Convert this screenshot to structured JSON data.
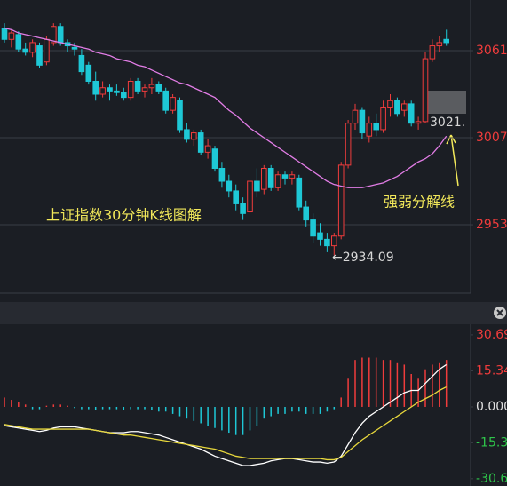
{
  "chart_data": [
    {
      "type": "candlestick",
      "open": [
        3075,
        3068,
        3071,
        3062,
        3060,
        3064,
        3054,
        3066,
        3076,
        3066,
        3063,
        3058,
        3052,
        3042,
        3034,
        3038,
        3036,
        3035,
        3032,
        3042,
        3036,
        3038,
        3040,
        3036,
        3024,
        3030,
        3012,
        3006,
        3010,
        2998,
        3000,
        2988,
        2980,
        2974,
        2966,
        2961,
        2980,
        2975,
        2988,
        2976,
        2984,
        2982,
        2982,
        2964,
        2956,
        2948,
        2944,
        2940,
        2946,
        2990,
        3016,
        3024,
        3008,
        3016,
        3012,
        3026,
        3030,
        3024,
        3028,
        3016,
        3017,
        3056,
        3064,
        3068
      ],
      "high": [
        3078,
        3074,
        3073,
        3066,
        3068,
        3066,
        3070,
        3078,
        3078,
        3068,
        3066,
        3062,
        3054,
        3048,
        3042,
        3040,
        3040,
        3038,
        3044,
        3044,
        3040,
        3044,
        3042,
        3038,
        3034,
        3032,
        3016,
        3012,
        3012,
        3006,
        3002,
        2992,
        2984,
        2978,
        2970,
        2982,
        2988,
        2990,
        2990,
        2986,
        2986,
        2986,
        2984,
        2968,
        2960,
        2954,
        2948,
        2948,
        2992,
        3018,
        3028,
        3026,
        3020,
        3022,
        3030,
        3034,
        3032,
        3030,
        3030,
        3020,
        3060,
        3068,
        3070,
        3074
      ],
      "low": [
        3066,
        3063,
        3060,
        3058,
        3057,
        3050,
        3052,
        3064,
        3064,
        3060,
        3058,
        3046,
        3040,
        3030,
        3032,
        3030,
        3033,
        3030,
        3030,
        3034,
        3032,
        3034,
        3034,
        3022,
        3022,
        3010,
        3004,
        3002,
        2996,
        2994,
        2986,
        2976,
        2970,
        2962,
        2956,
        2958,
        2970,
        2972,
        2974,
        2974,
        2978,
        2978,
        2962,
        2952,
        2942,
        2940,
        2936,
        2934.09,
        2944,
        2988,
        3012,
        3006,
        3004,
        3008,
        3010,
        3020,
        3020,
        3020,
        3014,
        3012,
        3016,
        3054,
        3060,
        3064
      ],
      "close": [
        3068,
        3072,
        3062,
        3060,
        3066,
        3052,
        3068,
        3076,
        3066,
        3064,
        3062,
        3048,
        3042,
        3034,
        3038,
        3036,
        3035,
        3032,
        3042,
        3036,
        3038,
        3040,
        3036,
        3024,
        3032,
        3012,
        3006,
        3010,
        2998,
        3002,
        2988,
        2980,
        2974,
        2966,
        2960,
        2980,
        2974,
        2988,
        2976,
        2984,
        2982,
        2984,
        2964,
        2956,
        2946,
        2944,
        2940,
        2946,
        2990,
        3016,
        3024,
        3010,
        3016,
        3012,
        3026,
        3030,
        3022,
        3028,
        3016,
        3017,
        3056,
        3064,
        3066,
        3066
      ],
      "up_color": "#f03c3c",
      "down_color": "#1ec8d6",
      "line": {
        "color": "#e27de6",
        "values": [
          3075,
          3074,
          3072,
          3071,
          3070,
          3069,
          3068,
          3067,
          3066,
          3065,
          3064,
          3063,
          3062,
          3060,
          3059,
          3058,
          3056,
          3055,
          3054,
          3052,
          3051,
          3049,
          3047,
          3045,
          3043,
          3041,
          3040,
          3038,
          3036,
          3034,
          3032,
          3028,
          3024,
          3021,
          3017,
          3013,
          3010,
          3007,
          3004,
          3001,
          2998,
          2995,
          2992,
          2989,
          2986,
          2983,
          2980,
          2978,
          2977,
          2976,
          2976,
          2976,
          2977,
          2978,
          2979,
          2981,
          2983,
          2986,
          2989,
          2992,
          2994,
          2997,
          3002,
          3008
        ]
      },
      "ylim": [
        2910.6,
        3092.4
      ],
      "yticks": [
        3061,
        3007,
        2953
      ],
      "grid": true,
      "annotations": [
        "上证指数30分钟K线图解",
        "强弱分解线",
        "←2934.09",
        "3021."
      ]
    },
    {
      "type": "macd",
      "histogram": {
        "up_color": "#f03c3c",
        "down_color": "#1ec8d6",
        "values": [
          4,
          3,
          2,
          1,
          -1,
          -1,
          0.5,
          1,
          1,
          0.5,
          -0.5,
          -1,
          -1,
          -1.5,
          -1,
          -1,
          -1,
          -1.5,
          -1,
          -1,
          -1,
          -1.5,
          -2,
          -2,
          -3,
          -4,
          -5,
          -6,
          -7,
          -8,
          -9,
          -10,
          -11,
          -12,
          -12,
          -10,
          -8,
          -5,
          -4,
          -3,
          -3,
          -2,
          -2,
          -3,
          -3,
          -3,
          -2,
          -1,
          4,
          12,
          20,
          21,
          21,
          21,
          20,
          20,
          19,
          18,
          14,
          12,
          16,
          18,
          19,
          20
        ]
      },
      "lines": [
        {
          "color": "#ffffff",
          "values": [
            -8,
            -8.5,
            -9,
            -9.5,
            -10,
            -10.5,
            -10,
            -9,
            -8.5,
            -8.5,
            -8.5,
            -9,
            -9.5,
            -10,
            -10.5,
            -11,
            -11,
            -11,
            -10.5,
            -10.5,
            -11,
            -11.5,
            -12,
            -13,
            -14,
            -15,
            -16,
            -17,
            -18,
            -19.5,
            -21,
            -22,
            -23,
            -24,
            -25,
            -25,
            -24.5,
            -24,
            -23,
            -22.5,
            -22,
            -22,
            -22.5,
            -23,
            -23.5,
            -23.5,
            -24,
            -23.5,
            -21,
            -16,
            -11,
            -7,
            -4,
            -2,
            0,
            2,
            4,
            6,
            7,
            7,
            10,
            13,
            16,
            18
          ]
        },
        {
          "color": "#e8d83c",
          "values": [
            -7.5,
            -8,
            -8.5,
            -9,
            -9.5,
            -9.5,
            -9.5,
            -9.5,
            -9.5,
            -9.5,
            -9.5,
            -9.5,
            -9.5,
            -10,
            -10.5,
            -11,
            -11.5,
            -12,
            -12,
            -12.5,
            -13,
            -13.5,
            -14,
            -14.5,
            -15,
            -15.5,
            -16,
            -16.5,
            -17,
            -17.5,
            -18,
            -19,
            -20,
            -21,
            -21.5,
            -22,
            -22,
            -22,
            -22,
            -22,
            -22,
            -22,
            -22,
            -22,
            -22,
            -22,
            -22.5,
            -22.5,
            -21.5,
            -19,
            -16.5,
            -14,
            -12,
            -10,
            -8,
            -6,
            -4,
            -2,
            0,
            2,
            3.5,
            5,
            7,
            8.5
          ]
        }
      ],
      "ylim": [
        -33.7,
        35.2
      ],
      "yticks": [
        30.69,
        15.34,
        {
          "value": 0,
          "label": "0.000"
        },
        -15.3,
        -30.6
      ],
      "grid": false
    }
  ]
}
